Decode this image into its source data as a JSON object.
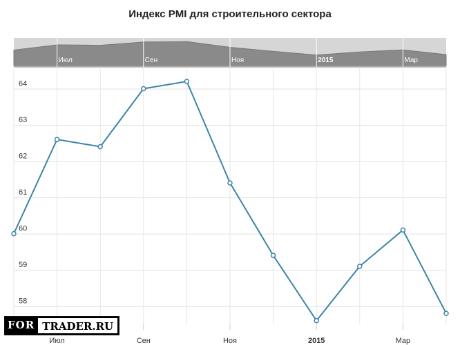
{
  "chart_data": {
    "type": "line",
    "title": "Индекс PMI для строительного сектора",
    "ylim": [
      57.5,
      64.6
    ],
    "yticks": [
      58,
      59,
      60,
      61,
      62,
      63,
      64
    ],
    "xticks": [
      {
        "label": "Июл",
        "bold": false
      },
      {
        "label": "Сен",
        "bold": false
      },
      {
        "label": "Ноя",
        "bold": false
      },
      {
        "label": "2015",
        "bold": true
      },
      {
        "label": "Мар",
        "bold": false
      }
    ],
    "series": [
      {
        "color": "#3d84a8",
        "x": [
          "2014-06",
          "2014-07",
          "2014-08",
          "2014-09",
          "2014-10",
          "2014-11",
          "2014-12",
          "2015-01",
          "2015-02",
          "2015-03",
          "2015-04"
        ],
        "values": [
          60.0,
          62.6,
          62.4,
          64.0,
          64.2,
          61.4,
          59.4,
          57.6,
          59.1,
          60.1,
          57.8
        ]
      }
    ],
    "navigator": {
      "labels": [
        {
          "label": "Июл",
          "bold": false
        },
        {
          "label": "Сен",
          "bold": false
        },
        {
          "label": "Ноя",
          "bold": false
        },
        {
          "label": "2015",
          "bold": true
        },
        {
          "label": "Мар",
          "bold": false
        }
      ]
    }
  },
  "logo": {
    "part1": "FOR",
    "part2": "TRADER.RU"
  }
}
